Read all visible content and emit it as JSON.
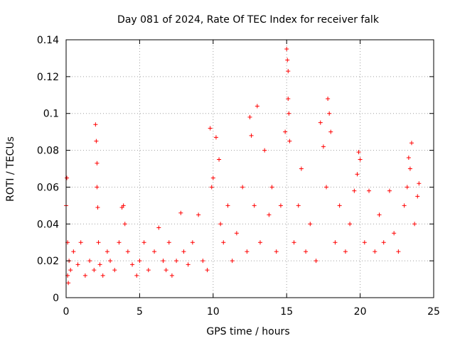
{
  "chart_data": {
    "type": "scatter",
    "title": "Day 081 of 2024, Rate Of TEC Index for receiver falk",
    "xlabel": "GPS time / hours",
    "ylabel": "ROTI / TECUs",
    "xlim": [
      0,
      25
    ],
    "ylim": [
      0,
      0.14
    ],
    "xticks": [
      0,
      5,
      10,
      15,
      20,
      25
    ],
    "xtick_labels": [
      "0",
      "5",
      "10",
      "15",
      "20",
      "25"
    ],
    "yticks": [
      0,
      0.02,
      0.04,
      0.06,
      0.08,
      0.1,
      0.12,
      0.14
    ],
    "ytick_labels": [
      "0",
      "0.02",
      "0.04",
      "0.06",
      "0.08",
      "0.1",
      "0.12",
      "0.14"
    ],
    "grid": true,
    "marker": "plus",
    "colors": {
      "points": "#ff0000",
      "grid": "#a0a0a0",
      "axis": "#000000"
    },
    "series": [
      {
        "x": [
          0.0,
          0.05,
          0.1,
          0.1,
          0.15,
          0.2,
          0.3,
          0.5,
          0.8,
          1.0,
          1.3,
          1.6,
          1.9,
          2.0,
          2.05,
          2.1,
          2.1,
          2.15,
          2.2,
          2.3,
          2.5,
          2.8,
          3.0,
          3.3,
          3.6,
          3.8,
          3.9,
          4.0,
          4.2,
          4.5,
          4.8,
          5.0,
          5.3,
          5.6,
          6.0,
          6.3,
          6.6,
          6.8,
          7.0,
          7.2,
          7.5,
          7.8,
          8.0,
          8.3,
          8.6,
          9.0,
          9.3,
          9.6,
          9.8,
          9.9,
          10.0,
          10.2,
          10.4,
          10.5,
          10.7,
          11.0,
          11.3,
          11.6,
          12.0,
          12.3,
          12.5,
          12.6,
          12.8,
          13.0,
          13.2,
          13.5,
          13.8,
          14.0,
          14.3,
          14.6,
          14.9,
          15.0,
          15.05,
          15.1,
          15.1,
          15.15,
          15.2,
          15.5,
          15.8,
          16.0,
          16.3,
          16.6,
          17.0,
          17.3,
          17.5,
          17.7,
          17.8,
          17.9,
          18.0,
          18.3,
          18.6,
          19.0,
          19.3,
          19.6,
          19.8,
          19.9,
          20.0,
          20.3,
          20.6,
          21.0,
          21.3,
          21.6,
          22.0,
          22.3,
          22.6,
          23.0,
          23.2,
          23.3,
          23.4,
          23.5,
          23.7,
          23.9,
          24.0
        ],
        "y": [
          0.05,
          0.065,
          0.03,
          0.012,
          0.008,
          0.02,
          0.015,
          0.025,
          0.018,
          0.03,
          0.012,
          0.02,
          0.015,
          0.094,
          0.085,
          0.06,
          0.073,
          0.049,
          0.03,
          0.018,
          0.012,
          0.025,
          0.02,
          0.015,
          0.03,
          0.049,
          0.05,
          0.04,
          0.025,
          0.018,
          0.012,
          0.02,
          0.03,
          0.015,
          0.025,
          0.038,
          0.02,
          0.015,
          0.03,
          0.012,
          0.02,
          0.046,
          0.025,
          0.018,
          0.03,
          0.045,
          0.02,
          0.015,
          0.092,
          0.06,
          0.065,
          0.087,
          0.075,
          0.04,
          0.03,
          0.05,
          0.02,
          0.035,
          0.06,
          0.025,
          0.098,
          0.088,
          0.05,
          0.104,
          0.03,
          0.08,
          0.045,
          0.06,
          0.025,
          0.05,
          0.09,
          0.135,
          0.129,
          0.123,
          0.108,
          0.1,
          0.085,
          0.03,
          0.05,
          0.07,
          0.025,
          0.04,
          0.02,
          0.095,
          0.082,
          0.06,
          0.108,
          0.1,
          0.09,
          0.03,
          0.05,
          0.025,
          0.04,
          0.058,
          0.067,
          0.079,
          0.075,
          0.03,
          0.058,
          0.025,
          0.045,
          0.03,
          0.058,
          0.035,
          0.025,
          0.05,
          0.06,
          0.076,
          0.07,
          0.084,
          0.04,
          0.055,
          0.062
        ]
      }
    ]
  }
}
